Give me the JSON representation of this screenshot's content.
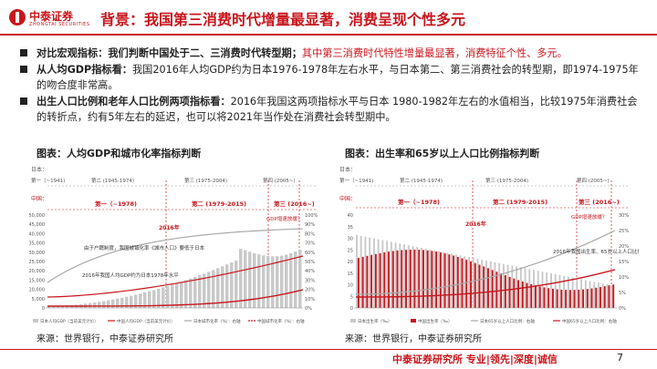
{
  "header": {
    "logo_cn": "中泰证券",
    "logo_en": "ZHONGTAI SECURITIES",
    "title": "背景：我国第三消费时代增量最显著，消费呈现个性多元"
  },
  "bullets": [
    {
      "lead": "对比宏观指标：",
      "text": "我们判断中国处于二、三消费时代转型期；",
      "highlight": "其中第三消费时代特性增量最显著，消费特征个性、多元。"
    },
    {
      "lead": "从人均GDP指标看：",
      "text": "我国2016年人均GDP约为日本1976-1978年左右水平，与日本第二、第三消费社会的转型期，即1974-1975年的吻合度非常高。"
    },
    {
      "lead": "出生人口比例和老年人口比例两项指标看：",
      "text": "2016年我国这两项指标水平与日本 1980-1982年左右的水值相当，比较1975年消费社会的转折点，约有5年左右的延迟，也可以将2021年当作处在消费社会转型期中。"
    }
  ],
  "left_chart": {
    "title": "图表：人均GDP和城市化率指标判断",
    "japan_label": "日本：",
    "china_label": "中国：",
    "eras_japan": [
      "第一（~1941)",
      "第二 (1945-1974)",
      "第三 (1975-2004)",
      "第四 (2005~)"
    ],
    "eras_china": [
      "第一（~1978)",
      "第二 (1979-2015)",
      "第三 (2016~)"
    ],
    "transition_note": "2016年",
    "gdp_note": "GDP增速放缓？",
    "annotation1": "由于户籍制度，我国城镇化率《城市人口》要低于日本",
    "annotation2": "2016年我国人均GDP约为日本1978年水平",
    "y_left": [
      "50,000",
      "45,000",
      "40,000",
      "35,000",
      "30,000",
      "25,000",
      "20,000",
      "15,000",
      "10,000",
      "5,000",
      "0"
    ],
    "y_right": [
      "100%",
      "90%",
      "80%",
      "70%",
      "60%",
      "50%",
      "40%",
      "30%",
      "20%",
      "10%",
      "0%"
    ],
    "legend": [
      "日本人均GDP（当前美元计价）",
      "中国人均GDP（当前美元计价）",
      "日本城市化率（%）：右轴",
      "中国城市化率（%）：右轴"
    ],
    "colors": {
      "japan_gdp": "#c9c9c9",
      "china_gdp": "#c8161d",
      "japan_urban": "#a8a8a8",
      "china_urban": "#c8161d"
    }
  },
  "right_chart": {
    "title": "图表：出生率和65岁以上人口比例指标判断",
    "japan_label": "日本：",
    "china_label": "中国：",
    "eras_japan": [
      "第一（~1941)",
      "第二 (1945-1974)",
      "第三 (1975-2004)",
      "第四 (2005~)"
    ],
    "eras_china": [
      "第一（~1978)",
      "第二 (1979-2015)",
      "第三 (2016~)"
    ],
    "transition_note": "2016年",
    "gdp_note": "GDP增速放缓？",
    "annotation": "2016年我国出生率、65岁以上人口比例约为日本1980年水平",
    "y_left": [
      "40",
      "35",
      "30",
      "25",
      "20",
      "15",
      "10",
      "5",
      "0"
    ],
    "y_right": [
      "30%",
      "25%",
      "20%",
      "15%",
      "10%",
      "5%",
      "0%"
    ],
    "legend": [
      "日本出生率（‰）",
      "中国出生率（‰）",
      "日本65岁以上人口比例：右轴",
      "中国65岁以上人口比例：右轴"
    ],
    "colors": {
      "japan_birth": "#c9c9c9",
      "china_birth": "#c8161d",
      "japan_old": "#a8a8a8",
      "china_old": "#c8161d"
    }
  },
  "source_left": "来源：世界银行，中泰证券研究所",
  "source_right": "来源：世界银行，中泰证券研究所",
  "footer": {
    "text": "中泰证券研究所 专业|领先|深度|诚信",
    "page": "7"
  }
}
